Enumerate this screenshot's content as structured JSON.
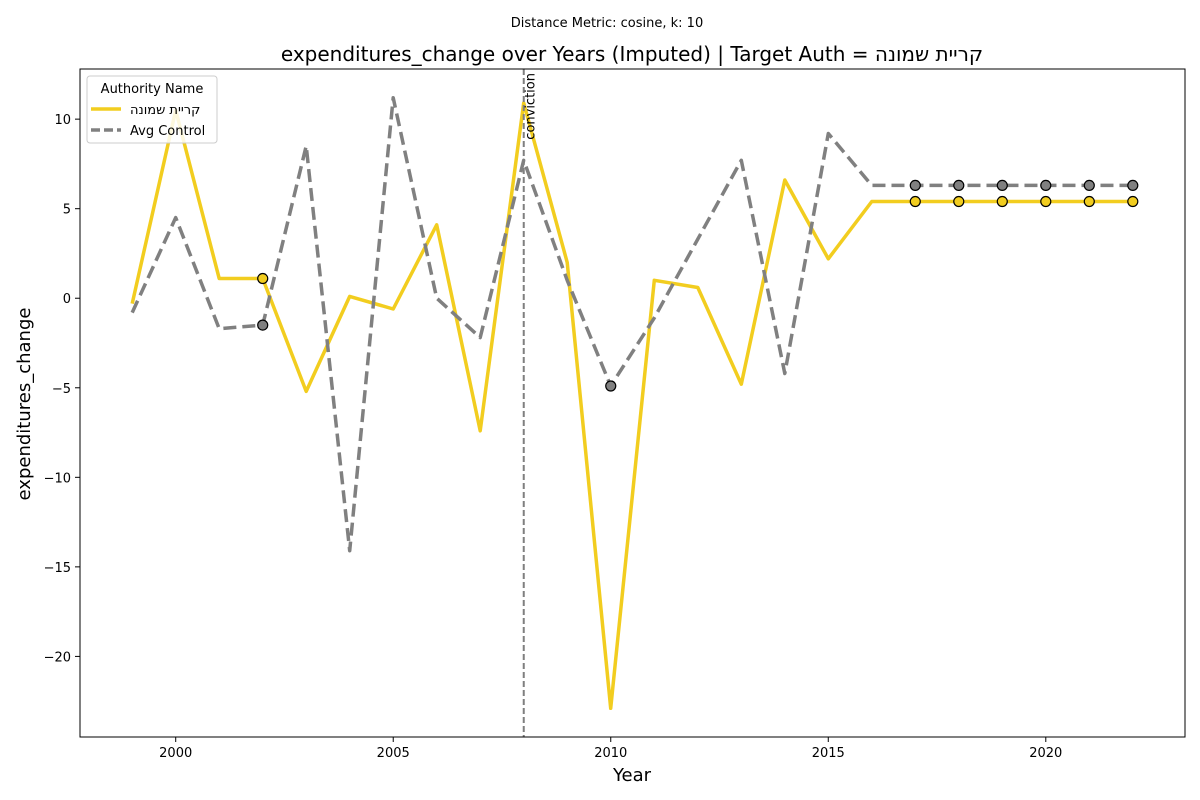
{
  "chart_data": {
    "type": "line",
    "suptitle": "Distance Metric: cosine, k: 10",
    "title": "expenditures_change over Years (Imputed) | Target Auth = קריית שמונה",
    "xlabel": "Year",
    "ylabel": "expenditures_change",
    "xlim": [
      1997.8,
      2023.2
    ],
    "ylim": [
      -24.5,
      12.8
    ],
    "xticks": [
      2000,
      2005,
      2010,
      2015,
      2020
    ],
    "yticks": [
      10,
      5,
      0,
      -5,
      -10,
      -15,
      -20
    ],
    "ytick_labels": [
      "10",
      "5",
      "0",
      "−5",
      "−10",
      "−15",
      "−20"
    ],
    "legend": {
      "title": "Authority Name",
      "location": "top-left",
      "entries": [
        "קריית שמונה",
        "Avg Control"
      ]
    },
    "vline": {
      "x": 2008,
      "label": "conviction",
      "color": "#7f7f7f"
    },
    "x": [
      1999,
      2000,
      2001,
      2002,
      2003,
      2004,
      2005,
      2006,
      2007,
      2008,
      2009,
      2010,
      2011,
      2012,
      2013,
      2014,
      2015,
      2016,
      2017,
      2018,
      2019,
      2020,
      2021,
      2022
    ],
    "series": [
      {
        "name": "קריית שמונה",
        "color": "#f2cd1f",
        "style": "solid",
        "values": [
          -0.3,
          10.5,
          1.1,
          1.1,
          -5.2,
          0.1,
          -0.6,
          4.1,
          -7.4,
          10.9,
          2.0,
          -22.9,
          1.0,
          0.6,
          -4.8,
          6.6,
          2.2,
          5.4,
          5.4,
          5.4,
          5.4,
          5.4,
          5.4,
          5.4
        ],
        "imputed_years": [
          2002,
          2017,
          2018,
          2019,
          2020,
          2021,
          2022
        ]
      },
      {
        "name": "Avg Control",
        "color": "#808080",
        "style": "dashed",
        "values": [
          -0.8,
          4.5,
          -1.7,
          -1.5,
          8.5,
          -14.1,
          11.2,
          0.0,
          -2.2,
          7.7,
          1.0,
          -4.9,
          -1.1,
          3.3,
          7.7,
          -4.2,
          9.2,
          6.3,
          6.3,
          6.3,
          6.3,
          6.3,
          6.3,
          6.3
        ],
        "imputed_years": [
          2002,
          2010,
          2017,
          2018,
          2019,
          2020,
          2021,
          2022
        ]
      }
    ]
  }
}
